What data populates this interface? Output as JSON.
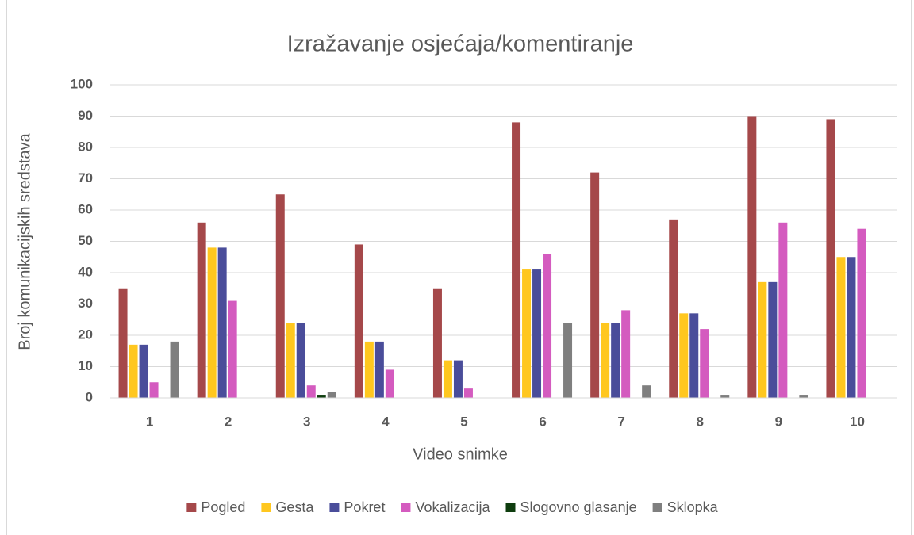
{
  "chart_data": {
    "type": "bar",
    "title": "Izražavanje osjećaja/komentiranje",
    "x_label": "Video snimke",
    "y_label": "Broj komunikacijskih sredstava",
    "categories": [
      "1",
      "2",
      "3",
      "4",
      "5",
      "6",
      "7",
      "8",
      "9",
      "10"
    ],
    "series": [
      {
        "name": "Pogled",
        "color": "#a5484a",
        "values": [
          35,
          56,
          65,
          49,
          35,
          88,
          72,
          57,
          90,
          89
        ]
      },
      {
        "name": "Gesta",
        "color": "#ffc71f",
        "values": [
          17,
          48,
          24,
          18,
          12,
          41,
          24,
          27,
          37,
          45
        ]
      },
      {
        "name": "Pokret",
        "color": "#4a4d9a",
        "values": [
          17,
          48,
          24,
          18,
          12,
          41,
          24,
          27,
          37,
          45
        ]
      },
      {
        "name": "Vokalizacija",
        "color": "#d45bbf",
        "values": [
          5,
          31,
          4,
          9,
          3,
          46,
          28,
          22,
          56,
          54
        ]
      },
      {
        "name": "Slogovno glasanje",
        "color": "#0e3d0e",
        "values": [
          0,
          0,
          1,
          0,
          0,
          0,
          0,
          0,
          0,
          0
        ]
      },
      {
        "name": "Sklopka",
        "color": "#7f7f7f",
        "values": [
          18,
          0,
          2,
          0,
          0,
          24,
          4,
          1,
          1,
          0
        ]
      }
    ],
    "ylim": [
      0,
      100
    ],
    "yticks": [
      0,
      10,
      20,
      30,
      40,
      50,
      60,
      70,
      80,
      90,
      100
    ],
    "grid": true,
    "legend": "bottom"
  }
}
